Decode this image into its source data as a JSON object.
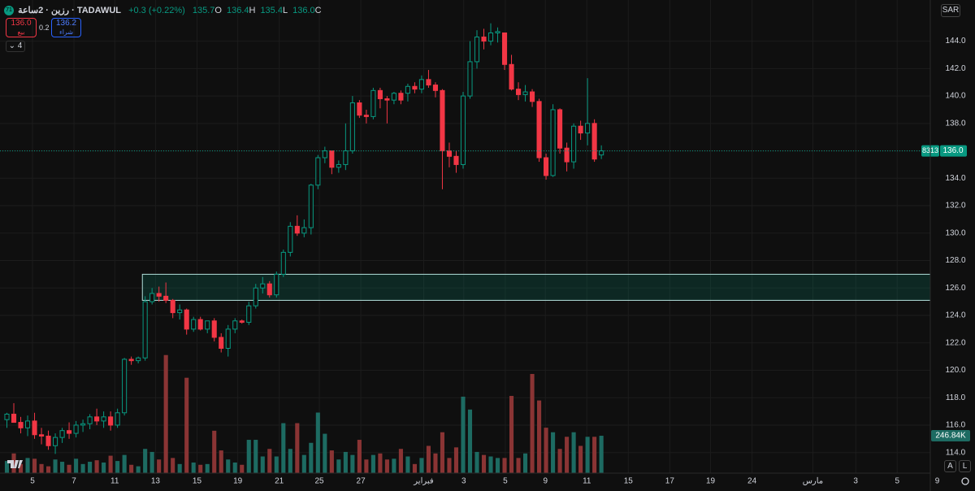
{
  "header": {
    "badge": "71",
    "symbol": "رزين · 2ساعة · TADAWUL",
    "ohlc": [
      {
        "label": "O",
        "value": "135.7"
      },
      {
        "label": "H",
        "value": "136.4"
      },
      {
        "label": "L",
        "value": "135.4"
      },
      {
        "label": "C",
        "value": "136.0"
      }
    ],
    "change": "+0.3 (+0.22%)",
    "sell": {
      "price": "136.0",
      "label": "بيع"
    },
    "spread": "0.2",
    "buy": {
      "price": "136.2",
      "label": "شراء"
    },
    "indicators_count": "4",
    "currency": "SAR",
    "auto_button": "A",
    "log_button": "L"
  },
  "chart_data": {
    "type": "candlestick",
    "xlim": [
      -1,
      137
    ],
    "ylim": [
      112.5,
      147.0
    ],
    "xticks": [
      {
        "value": 3.7,
        "label": "5"
      },
      {
        "value": 9.7,
        "label": "7"
      },
      {
        "value": 15.6,
        "label": "11"
      },
      {
        "value": 21.5,
        "label": "13"
      },
      {
        "value": 27.5,
        "label": "15"
      },
      {
        "value": 33.4,
        "label": "19"
      },
      {
        "value": 39.4,
        "label": "21"
      },
      {
        "value": 45.2,
        "label": "25"
      },
      {
        "value": 51.2,
        "label": "27"
      },
      {
        "value": 60.3,
        "label": "فبراير"
      },
      {
        "value": 66.1,
        "label": "3"
      },
      {
        "value": 72.1,
        "label": "5"
      },
      {
        "value": 77.9,
        "label": "9"
      },
      {
        "value": 83.9,
        "label": "11"
      },
      {
        "value": 89.9,
        "label": "15"
      },
      {
        "value": 95.9,
        "label": "17"
      },
      {
        "value": 101.8,
        "label": "19"
      },
      {
        "value": 107.8,
        "label": "24"
      },
      {
        "value": 116.6,
        "label": "مارس"
      },
      {
        "value": 122.8,
        "label": "3"
      },
      {
        "value": 128.8,
        "label": "5"
      },
      {
        "value": 134.6,
        "label": "9"
      }
    ],
    "yticks": [
      {
        "value": 114,
        "label": "114.0"
      },
      {
        "value": 116,
        "label": "116.0"
      },
      {
        "value": 118,
        "label": "118.0"
      },
      {
        "value": 120,
        "label": "120.0"
      },
      {
        "value": 122,
        "label": "122.0"
      },
      {
        "value": 124,
        "label": "124.0"
      },
      {
        "value": 126,
        "label": "126.0"
      },
      {
        "value": 128,
        "label": "128.0"
      },
      {
        "value": 130,
        "label": "130.0"
      },
      {
        "value": 132,
        "label": "132.0"
      },
      {
        "value": 134,
        "label": "134.0"
      },
      {
        "value": 136,
        "label": "136.0"
      },
      {
        "value": 138,
        "label": "138.0"
      },
      {
        "value": 140,
        "label": "140.0"
      },
      {
        "value": 142,
        "label": "142.0"
      },
      {
        "value": 144,
        "label": "144.0"
      }
    ],
    "grid": true,
    "up_color": "#089981",
    "down_color": "#f23645",
    "volume_up_color": "#1d6b62",
    "volume_down_color": "#8a3434",
    "open": [
      116.4,
      116.8,
      116.2,
      115.8,
      116.3,
      115.3,
      115.2,
      114.5,
      115.1,
      115.6,
      115.4,
      116.0,
      116.1,
      116.6,
      116.3,
      116.6,
      116.0,
      116.9,
      120.8,
      120.7,
      120.9,
      125.0,
      125.6,
      125.4,
      125.1,
      124.2,
      124.4,
      123.0,
      123.7,
      123.0,
      123.6,
      122.4,
      121.6,
      123.0,
      123.6,
      123.5,
      124.7,
      126.0,
      126.3,
      125.5,
      127.0,
      128.6,
      130.5,
      130.0,
      130.4,
      133.5,
      135.5,
      136.0,
      134.8,
      135.0,
      136.0,
      139.5,
      138.6,
      138.5,
      140.4,
      139.8,
      139.7,
      140.2,
      140.2,
      140.7,
      140.5,
      141.2,
      140.8,
      140.4,
      136.0,
      135.6,
      135.0,
      140.0,
      142.5,
      144.3,
      144.0,
      144.6,
      144.6,
      142.3,
      140.5,
      140.1,
      140.3,
      139.6,
      135.5,
      134.2,
      139.0,
      136.2,
      135.2,
      137.8,
      137.3,
      138.0,
      135.7
    ],
    "high": [
      116.9,
      117.6,
      116.6,
      116.7,
      116.9,
      115.8,
      115.6,
      115.4,
      115.8,
      116.2,
      116.3,
      116.4,
      116.8,
      117.2,
      117.0,
      117.0,
      117.2,
      120.9,
      121.0,
      121.0,
      125.4,
      126.0,
      126.1,
      126.4,
      125.2,
      124.8,
      124.5,
      123.9,
      123.9,
      123.6,
      123.8,
      122.7,
      123.3,
      123.8,
      123.7,
      125.0,
      126.3,
      126.8,
      126.5,
      127.2,
      128.8,
      130.8,
      131.3,
      131.0,
      133.6,
      135.7,
      136.3,
      136.0,
      135.3,
      138.0,
      140.0,
      139.7,
      139.0,
      140.6,
      140.6,
      140.0,
      140.3,
      140.4,
      140.9,
      141.0,
      141.5,
      141.9,
      141.0,
      140.5,
      136.6,
      136.0,
      140.3,
      144.0,
      144.8,
      144.9,
      145.3,
      145.0,
      144.6,
      143.0,
      141.0,
      140.8,
      140.5,
      139.8,
      135.8,
      139.4,
      139.1,
      136.6,
      138.0,
      138.2,
      141.3,
      138.3,
      136.4
    ],
    "low": [
      115.8,
      116.3,
      115.4,
      115.2,
      115.0,
      114.6,
      114.2,
      113.9,
      114.7,
      115.0,
      115.1,
      115.5,
      115.7,
      116.0,
      115.8,
      115.6,
      115.8,
      116.7,
      120.4,
      120.5,
      120.7,
      124.8,
      125.0,
      124.9,
      123.8,
      123.7,
      122.6,
      122.8,
      122.9,
      122.7,
      122.1,
      121.3,
      121.0,
      122.7,
      123.4,
      123.3,
      124.5,
      125.6,
      125.3,
      125.3,
      126.8,
      128.3,
      129.8,
      129.7,
      129.9,
      133.2,
      135.1,
      134.3,
      134.4,
      134.6,
      135.8,
      138.4,
      138.0,
      138.3,
      139.1,
      138.0,
      139.4,
      139.4,
      139.6,
      140.2,
      140.2,
      140.6,
      139.9,
      133.2,
      134.8,
      134.4,
      134.7,
      139.8,
      142.0,
      143.4,
      143.7,
      143.9,
      141.9,
      140.4,
      139.7,
      139.6,
      139.2,
      135.2,
      133.9,
      134.1,
      135.8,
      134.5,
      134.7,
      136.8,
      136.4,
      135.2,
      135.4
    ],
    "close": [
      116.8,
      116.2,
      115.8,
      116.3,
      115.3,
      115.2,
      114.5,
      115.1,
      115.6,
      115.4,
      116.0,
      116.1,
      116.6,
      116.3,
      116.6,
      116.0,
      116.9,
      120.8,
      120.7,
      120.9,
      125.0,
      125.6,
      125.4,
      125.1,
      124.2,
      124.4,
      123.0,
      123.7,
      123.0,
      123.6,
      122.4,
      121.6,
      123.0,
      123.6,
      123.5,
      124.7,
      126.0,
      126.3,
      125.5,
      127.0,
      128.6,
      130.5,
      130.0,
      130.4,
      133.5,
      135.5,
      136.0,
      134.8,
      135.0,
      136.0,
      139.5,
      138.6,
      138.5,
      140.4,
      139.8,
      139.7,
      140.2,
      139.7,
      140.7,
      140.5,
      141.2,
      140.8,
      140.4,
      136.0,
      135.6,
      135.0,
      140.0,
      142.5,
      144.3,
      144.0,
      144.6,
      144.7,
      142.3,
      140.5,
      140.1,
      140.3,
      139.6,
      135.5,
      134.2,
      139.0,
      136.2,
      135.2,
      137.8,
      137.3,
      138.0,
      135.4,
      136.0
    ],
    "volume": [
      80000,
      130000,
      60000,
      100000,
      95000,
      60000,
      45000,
      90000,
      75000,
      55000,
      95000,
      60000,
      75000,
      85000,
      70000,
      115000,
      80000,
      120000,
      55000,
      45000,
      160000,
      140000,
      90000,
      780000,
      100000,
      60000,
      630000,
      70000,
      55000,
      60000,
      280000,
      150000,
      90000,
      70000,
      55000,
      220000,
      220000,
      110000,
      160000,
      110000,
      330000,
      160000,
      330000,
      120000,
      200000,
      400000,
      260000,
      150000,
      90000,
      140000,
      120000,
      220000,
      90000,
      120000,
      130000,
      90000,
      95000,
      160000,
      110000,
      60000,
      100000,
      180000,
      130000,
      270000,
      100000,
      170000,
      505000,
      420000,
      140000,
      120000,
      110000,
      100000,
      100000,
      510000,
      100000,
      130000,
      655000,
      480000,
      300000,
      270000,
      160000,
      240000,
      270000,
      180000,
      240000,
      240000,
      246840
    ],
    "volume_value_labels": {
      "86": "246.84K"
    },
    "last_price": {
      "value": 136.0,
      "label": "136.0"
    },
    "countdown": "8313",
    "zone": {
      "x_start": 19.6,
      "top": 127.0,
      "bottom": 125.1
    }
  }
}
